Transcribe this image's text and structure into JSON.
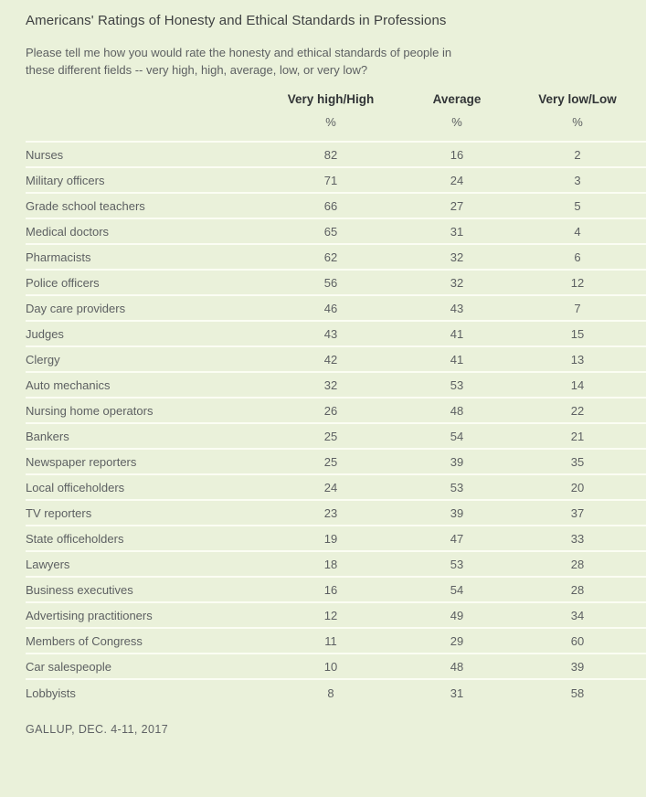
{
  "page": {
    "title": "Americans' Ratings of Honesty and Ethical Standards in Professions",
    "question_lines": [
      "Please tell me how you would rate the honesty and ethical standards of people in",
      "these different fields -- very high, high, average, low, or very low?"
    ],
    "source": "GALLUP, DEC. 4-11, 2017"
  },
  "colors": {
    "background": "#eaf1da",
    "separator": "#fbfdf3",
    "title_text": "#3f4142",
    "body_text": "#5d6062",
    "header_text": "#323537"
  },
  "chart_data": {
    "type": "table",
    "title": "Americans' Ratings of Honesty and Ethical Standards in Professions",
    "subtitle": "Please tell me how you would rate the honesty and ethical standards of people in these different fields -- very high, high, average, low, or very low?",
    "columns": [
      "Very high/High",
      "Average",
      "Very low/Low"
    ],
    "unit": "%",
    "rows": [
      {
        "profession": "Nurses",
        "values": [
          82,
          16,
          2
        ]
      },
      {
        "profession": "Military officers",
        "values": [
          71,
          24,
          3
        ]
      },
      {
        "profession": "Grade school teachers",
        "values": [
          66,
          27,
          5
        ]
      },
      {
        "profession": "Medical doctors",
        "values": [
          65,
          31,
          4
        ]
      },
      {
        "profession": "Pharmacists",
        "values": [
          62,
          32,
          6
        ]
      },
      {
        "profession": "Police officers",
        "values": [
          56,
          32,
          12
        ]
      },
      {
        "profession": "Day care providers",
        "values": [
          46,
          43,
          7
        ]
      },
      {
        "profession": "Judges",
        "values": [
          43,
          41,
          15
        ]
      },
      {
        "profession": "Clergy",
        "values": [
          42,
          41,
          13
        ]
      },
      {
        "profession": "Auto mechanics",
        "values": [
          32,
          53,
          14
        ]
      },
      {
        "profession": "Nursing home operators",
        "values": [
          26,
          48,
          22
        ]
      },
      {
        "profession": "Bankers",
        "values": [
          25,
          54,
          21
        ]
      },
      {
        "profession": "Newspaper reporters",
        "values": [
          25,
          39,
          35
        ]
      },
      {
        "profession": "Local officeholders",
        "values": [
          24,
          53,
          20
        ]
      },
      {
        "profession": "TV reporters",
        "values": [
          23,
          39,
          37
        ]
      },
      {
        "profession": "State officeholders",
        "values": [
          19,
          47,
          33
        ]
      },
      {
        "profession": "Lawyers",
        "values": [
          18,
          53,
          28
        ]
      },
      {
        "profession": "Business executives",
        "values": [
          16,
          54,
          28
        ]
      },
      {
        "profession": "Advertising practitioners",
        "values": [
          12,
          49,
          34
        ]
      },
      {
        "profession": "Members of Congress",
        "values": [
          11,
          29,
          60
        ]
      },
      {
        "profession": "Car salespeople",
        "values": [
          10,
          48,
          39
        ]
      },
      {
        "profession": "Lobbyists",
        "values": [
          8,
          31,
          58
        ]
      }
    ],
    "source": "GALLUP, DEC. 4-11, 2017"
  }
}
